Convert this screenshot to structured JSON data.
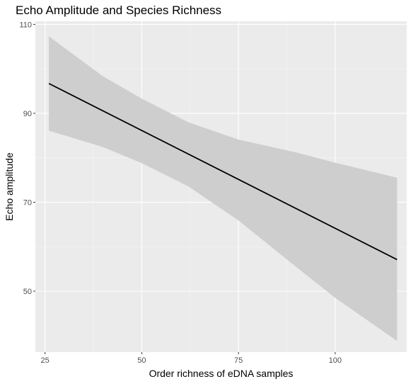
{
  "chart_data": {
    "type": "line",
    "title": "Echo Amplitude and Species Richness",
    "xlabel": "Order richness of eDNA samples",
    "ylabel": "Echo amplitude",
    "xlim": [
      22.5,
      118.5
    ],
    "ylim": [
      36.3,
      110.7
    ],
    "x_ticks": [
      25,
      50,
      75,
      100
    ],
    "y_ticks": [
      50,
      70,
      90,
      110
    ],
    "x_tick_labels": [
      "25",
      "50",
      "75",
      "100"
    ],
    "y_tick_labels": [
      "50",
      "70",
      "90",
      "110"
    ],
    "grid": true,
    "legend": "none",
    "series": [
      {
        "x": [
          26,
          116
        ],
        "y": [
          96.7,
          57.1
        ],
        "color": "#000000"
      }
    ],
    "confidence_band": {
      "x": [
        26,
        40,
        50,
        62,
        75,
        90,
        100,
        116
      ],
      "upper": [
        107.3,
        98.3,
        93.3,
        88.0,
        84.1,
        81.2,
        78.9,
        75.5
      ],
      "lower": [
        86.1,
        82.4,
        78.8,
        73.6,
        65.9,
        55.4,
        48.5,
        38.8
      ],
      "fill": "#cccccc"
    },
    "panel_background": "#ebebeb"
  }
}
